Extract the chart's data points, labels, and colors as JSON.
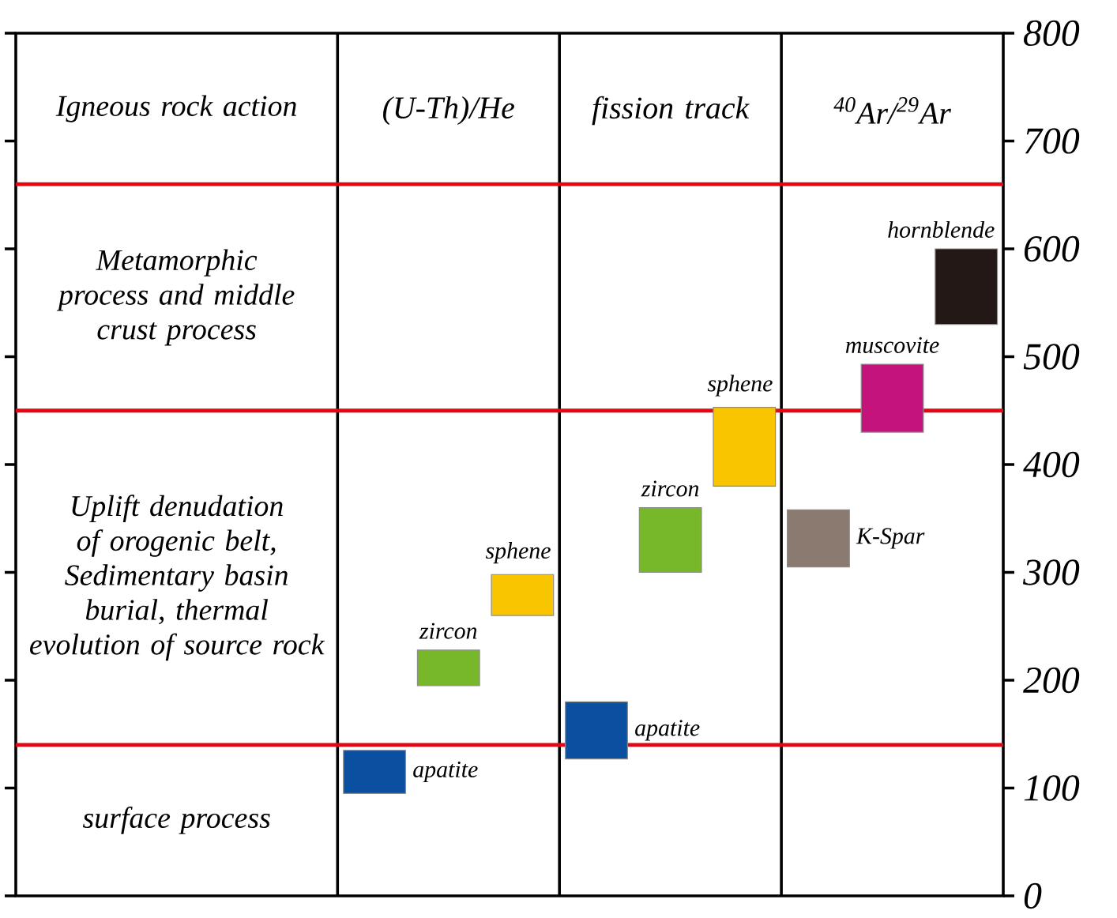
{
  "chart_data": {
    "type": "bar",
    "categories": [
      "(U-Th)/He",
      "fission track",
      "$^{40}$Ar/$^{29}$Ar"
    ],
    "series": [
      {
        "name": "apatite",
        "color": "#0a4fa0",
        "base": [
          95,
          127,
          null
        ],
        "values": [
          40,
          53,
          null
        ]
      },
      {
        "name": "zircon",
        "color": "#76b82a",
        "base": [
          195,
          300,
          null
        ],
        "values": [
          33,
          60,
          null
        ]
      },
      {
        "name": "sphene",
        "color": "#f9c400",
        "base": [
          260,
          380,
          null
        ],
        "values": [
          38,
          73,
          null
        ]
      },
      {
        "name": "K-Spar",
        "color": "#8a7a70",
        "base": [
          null,
          null,
          305
        ],
        "values": [
          null,
          null,
          53
        ]
      },
      {
        "name": "muscovite",
        "color": "#c4147b",
        "base": [
          null,
          null,
          430
        ],
        "values": [
          null,
          null,
          63
        ]
      },
      {
        "name": "hornblende",
        "color": "#231815",
        "base": [
          null,
          null,
          530
        ],
        "values": [
          null,
          null,
          70
        ]
      }
    ],
    "ylim": [
      0,
      800
    ],
    "yticks": [
      0,
      100,
      200,
      300,
      400,
      500,
      600,
      700,
      800
    ],
    "ref_lines": [
      {
        "axis": "y",
        "value": 140,
        "color": "#e30613"
      },
      {
        "axis": "y",
        "value": 450,
        "color": "#e30613"
      },
      {
        "axis": "y",
        "value": 660,
        "color": "#e30613"
      }
    ],
    "annotations": [
      "Igneous rock action",
      "Metamorphic process and middle crust process",
      "Uplift denudation of orogenic belt, Sedimentary basin burial, thermal evolution of source rock",
      "surface process"
    ]
  }
}
